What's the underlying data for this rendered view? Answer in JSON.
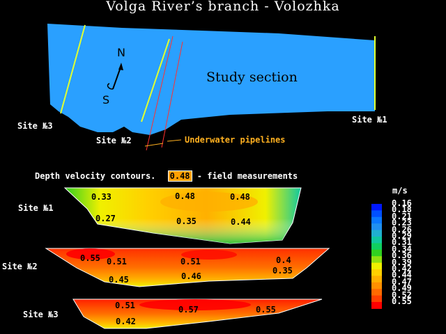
{
  "title": "Volga River’s branch - Volozhka",
  "map": {
    "study_label": "Study section",
    "compass_n": "N",
    "compass_s": "S",
    "site1": "Site №1",
    "site2": "Site №2",
    "site3": "Site №3",
    "pipelines_label": "Underwater pipelines",
    "colors": {
      "water": "#2aa0ff",
      "cross_section": "#e0ff30",
      "pipeline": "#ff3030",
      "pipe_label": "#ffb020"
    }
  },
  "legend": {
    "prefix": "Depth velocity contours.",
    "badge": "0.48",
    "suffix": "- field measurements",
    "unit": "m/s",
    "scale": [
      {
        "v": "0.16",
        "c": "#0018ff"
      },
      {
        "v": "0.18",
        "c": "#0050ff"
      },
      {
        "v": "0.21",
        "c": "#0a78ff"
      },
      {
        "v": "0.23",
        "c": "#2090f0"
      },
      {
        "v": "0.26",
        "c": "#20b0d0"
      },
      {
        "v": "0.29",
        "c": "#10c8a0"
      },
      {
        "v": "0.31",
        "c": "#10d060"
      },
      {
        "v": "0.34",
        "c": "#30d020"
      },
      {
        "v": "0.36",
        "c": "#90e010"
      },
      {
        "v": "0.39",
        "c": "#f0f000"
      },
      {
        "v": "0.42",
        "c": "#ffd000"
      },
      {
        "v": "0.44",
        "c": "#ffb000"
      },
      {
        "v": "0.47",
        "c": "#ff9000"
      },
      {
        "v": "0.49",
        "c": "#ff6a00"
      },
      {
        "v": "0.52",
        "c": "#ff4000"
      },
      {
        "v": "0.55",
        "c": "#ff0000"
      }
    ]
  },
  "sections": [
    {
      "label": "Site №1",
      "values": [
        "0.33",
        "0.48",
        "0.48",
        "0.27",
        "0.35",
        "0.44"
      ]
    },
    {
      "label": "Site №2",
      "values": [
        "0.55",
        "0.51",
        "0.51",
        "0.4",
        "0.35",
        "0.45",
        "0.46"
      ]
    },
    {
      "label": "Site №3",
      "values": [
        "0.51",
        "0.57",
        "0.55",
        "0.42"
      ]
    }
  ]
}
